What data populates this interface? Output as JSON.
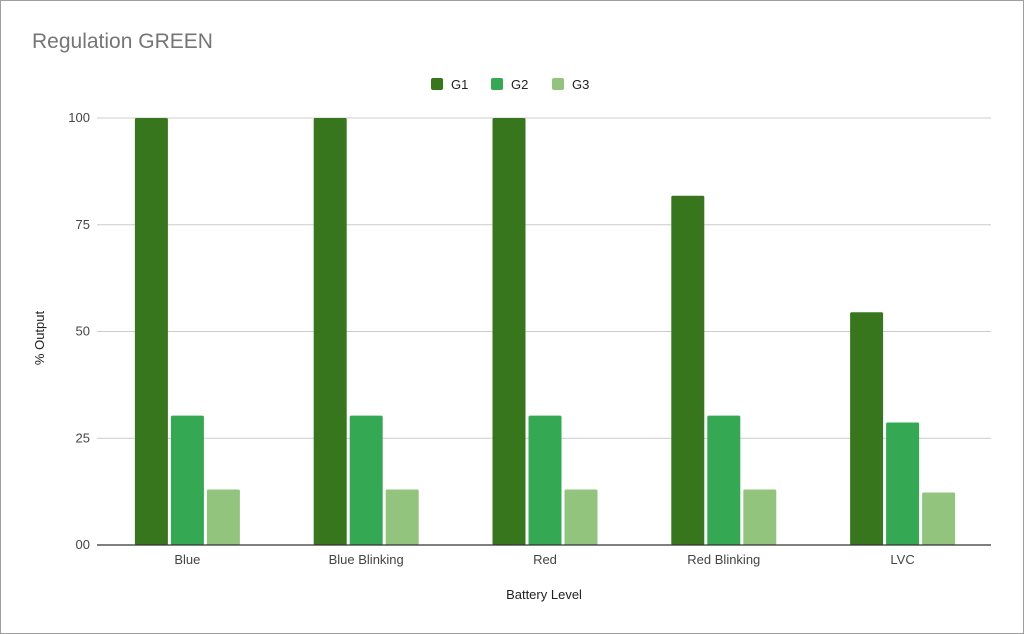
{
  "chart_data": {
    "type": "bar",
    "title": "Regulation GREEN",
    "xlabel": "Battery Level",
    "ylabel": "% Output",
    "categories": [
      "Blue",
      "Blue Blinking",
      "Red",
      "Red Blinking",
      "LVC"
    ],
    "series": [
      {
        "name": "G1",
        "color": "#38761d",
        "values": [
          100,
          100,
          100,
          81.8,
          54.5
        ]
      },
      {
        "name": "G2",
        "color": "#34a853",
        "values": [
          30.3,
          30.3,
          30.3,
          30.3,
          28.7
        ]
      },
      {
        "name": "G3",
        "color": "#93c47d",
        "values": [
          13,
          13,
          13,
          13,
          12.3
        ]
      }
    ],
    "ylim": [
      0,
      100
    ],
    "yticks": [
      "00",
      "25",
      "50",
      "75",
      "100"
    ],
    "grid": true,
    "legend_position": "top-center"
  }
}
